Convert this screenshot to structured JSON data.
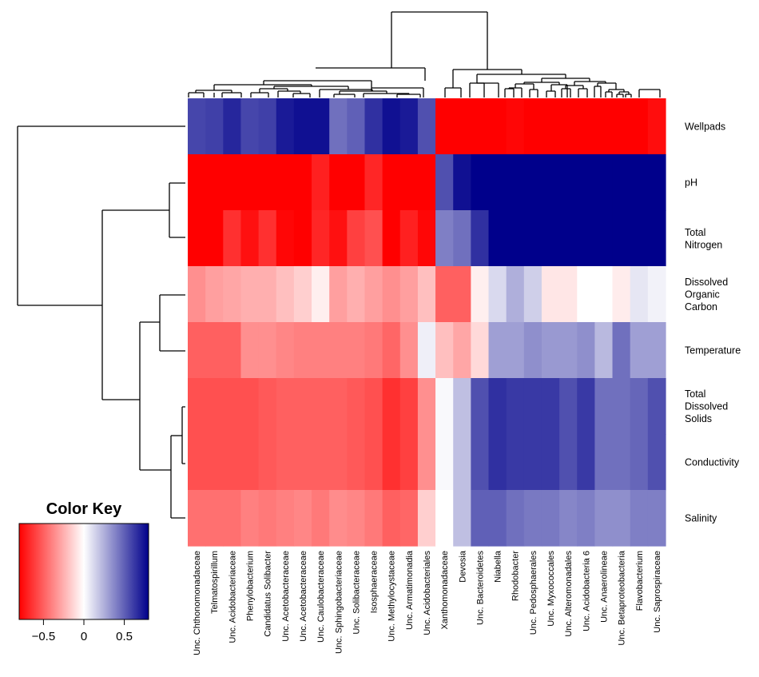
{
  "chart_data": {
    "type": "heatmap",
    "title": "",
    "xlabel": "",
    "ylabel": "",
    "columns": [
      "Unc. Chthonomonadaceae",
      "Telmatospirillum",
      "Unc. Acidobacteriaceae",
      "Phenylobacterium",
      "Candidatus Solibacter",
      "Unc. Acetobacteraceae",
      "Unc. Acetobacteraceae",
      "Unc. Caulobacteraceae",
      "Unc. Sphingobacteriaceae",
      "Unc. Solibacteraceae",
      "Isosphaeraceae",
      "Unc. Methylocystaceae",
      "Unc. Armatimonadia",
      "Unc. Acidobacteriales",
      "Xanthomonadaceae",
      "Devosia",
      "Unc. Bacteroidetes",
      "Niabella",
      "Rhodobacter",
      "Unc. Pedosphaerales",
      "Unc. Myxococcales",
      "Unc. Alteromonadales",
      "Unc. Acidobacteria 6",
      "Unc. Anaerolineae",
      "Unc. Betaproteobacteria",
      "Flavobacterium",
      "Unc. Saprospiraceae"
    ],
    "rows": [
      [
        "Wellpads"
      ],
      [
        "pH"
      ],
      [
        "Total",
        "Nitrogen"
      ],
      [
        "Dissolved",
        "Organic",
        "Carbon"
      ],
      [
        "Temperature"
      ],
      [
        "Total",
        "Dissolved",
        "Solids"
      ],
      [
        "Conductivity"
      ],
      [
        "Salinity"
      ]
    ],
    "values": [
      [
        0.58,
        0.6,
        0.68,
        0.58,
        0.6,
        0.72,
        0.75,
        0.75,
        0.45,
        0.5,
        0.65,
        0.75,
        0.72,
        0.55,
        -0.85,
        -0.88,
        -0.82,
        -0.8,
        -0.78,
        -0.8,
        -0.82,
        -0.88,
        -0.9,
        -0.86,
        -0.85,
        -0.82,
        -0.76
      ],
      [
        -0.85,
        -0.82,
        -0.8,
        -0.85,
        -0.82,
        -0.8,
        -0.8,
        -0.7,
        -0.82,
        -0.8,
        -0.68,
        -0.95,
        -0.85,
        -0.82,
        0.55,
        0.75,
        0.85,
        0.95,
        0.9,
        0.88,
        0.88,
        0.92,
        0.88,
        0.88,
        0.88,
        0.95,
        0.92
      ],
      [
        -0.85,
        -0.88,
        -0.65,
        -0.75,
        -0.65,
        -0.78,
        -0.82,
        -0.68,
        -0.75,
        -0.6,
        -0.55,
        -0.92,
        -0.7,
        -0.78,
        0.4,
        0.45,
        0.65,
        0.9,
        0.92,
        0.98,
        0.82,
        0.82,
        0.82,
        0.88,
        0.88,
        0.9,
        0.95
      ],
      [
        -0.35,
        -0.3,
        -0.28,
        -0.25,
        -0.25,
        -0.2,
        -0.15,
        -0.05,
        -0.3,
        -0.25,
        -0.3,
        -0.35,
        -0.3,
        -0.2,
        -0.5,
        -0.5,
        -0.05,
        0.12,
        0.25,
        0.15,
        -0.08,
        -0.08,
        0.0,
        0.0,
        -0.06,
        0.08,
        0.04
      ],
      [
        -0.5,
        -0.5,
        -0.5,
        -0.35,
        -0.35,
        -0.38,
        -0.4,
        -0.4,
        -0.4,
        -0.4,
        -0.42,
        -0.48,
        -0.35,
        0.05,
        -0.2,
        -0.28,
        -0.12,
        0.3,
        0.3,
        0.35,
        0.32,
        0.32,
        0.35,
        0.22,
        0.45,
        0.3,
        0.3
      ],
      [
        -0.55,
        -0.55,
        -0.55,
        -0.55,
        -0.52,
        -0.5,
        -0.5,
        -0.5,
        -0.5,
        -0.52,
        -0.55,
        -0.65,
        -0.6,
        -0.35,
        0.02,
        0.2,
        0.55,
        0.65,
        0.62,
        0.62,
        0.62,
        0.55,
        0.62,
        0.45,
        0.45,
        0.48,
        0.55
      ],
      [
        -0.55,
        -0.55,
        -0.55,
        -0.55,
        -0.52,
        -0.5,
        -0.5,
        -0.5,
        -0.5,
        -0.52,
        -0.55,
        -0.65,
        -0.6,
        -0.35,
        0.02,
        0.2,
        0.55,
        0.65,
        0.62,
        0.62,
        0.62,
        0.55,
        0.62,
        0.45,
        0.45,
        0.48,
        0.55
      ],
      [
        -0.45,
        -0.45,
        -0.45,
        -0.4,
        -0.42,
        -0.4,
        -0.38,
        -0.42,
        -0.36,
        -0.38,
        -0.42,
        -0.5,
        -0.48,
        -0.15,
        0.0,
        0.2,
        0.5,
        0.5,
        0.45,
        0.42,
        0.42,
        0.38,
        0.4,
        0.35,
        0.35,
        0.4,
        0.4
      ]
    ],
    "color_key": {
      "title": "Color Key",
      "ticks": [
        {
          "value": -0.5,
          "label": "−0.5"
        },
        {
          "value": 0,
          "label": "0"
        },
        {
          "value": 0.5,
          "label": "0.5"
        }
      ],
      "range": [
        -0.8,
        0.8
      ],
      "low_color": "#ff0000",
      "mid_color": "#ffffff",
      "high_color": "#00008b"
    },
    "row_dendrogram": true,
    "column_dendrogram": true,
    "legend_position": "bottom-left"
  }
}
